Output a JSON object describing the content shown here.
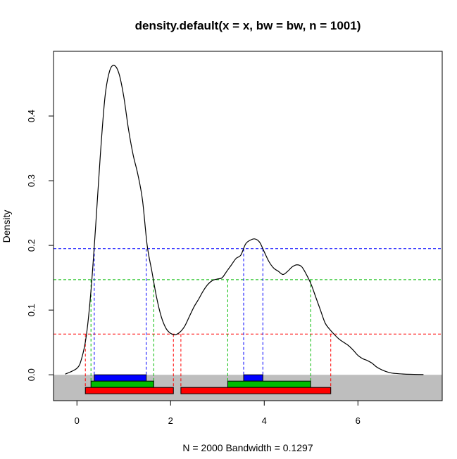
{
  "chart_data": {
    "type": "line",
    "title": "density.default(x = x, bw = bw, n = 1001)",
    "xlabel": "N = 2000   Bandwidth = 0.1297",
    "ylabel": "Density",
    "xlim": [
      -0.5,
      7.8
    ],
    "ylim": [
      -0.04,
      0.5
    ],
    "x_ticks": [
      0,
      2,
      4,
      6
    ],
    "x_tick_labels": [
      "0",
      "2",
      "4",
      "6"
    ],
    "y_ticks": [
      0.0,
      0.1,
      0.2,
      0.3,
      0.4
    ],
    "y_tick_labels": [
      "0.0",
      "0.1",
      "0.2",
      "0.3",
      "0.4"
    ],
    "grid": false,
    "density_curve": {
      "x": [
        -0.25,
        0.0,
        0.1,
        0.2,
        0.3,
        0.4,
        0.5,
        0.6,
        0.7,
        0.8,
        0.9,
        1.0,
        1.1,
        1.2,
        1.3,
        1.4,
        1.5,
        1.6,
        1.7,
        1.8,
        1.9,
        2.0,
        2.1,
        2.2,
        2.3,
        2.4,
        2.5,
        2.6,
        2.7,
        2.8,
        2.9,
        3.0,
        3.1,
        3.2,
        3.3,
        3.4,
        3.5,
        3.6,
        3.7,
        3.8,
        3.9,
        4.0,
        4.1,
        4.2,
        4.3,
        4.4,
        4.5,
        4.6,
        4.7,
        4.8,
        4.9,
        5.0,
        5.1,
        5.2,
        5.3,
        5.4,
        5.5,
        5.6,
        5.7,
        5.8,
        5.9,
        6.0,
        6.1,
        6.2,
        6.3,
        6.4,
        6.5,
        6.6,
        6.7,
        6.8,
        6.9,
        7.0,
        7.2,
        7.4
      ],
      "y": [
        0.001,
        0.01,
        0.025,
        0.06,
        0.13,
        0.23,
        0.34,
        0.43,
        0.47,
        0.478,
        0.465,
        0.43,
        0.38,
        0.34,
        0.31,
        0.27,
        0.2,
        0.16,
        0.12,
        0.09,
        0.072,
        0.064,
        0.062,
        0.066,
        0.075,
        0.09,
        0.105,
        0.117,
        0.13,
        0.14,
        0.146,
        0.148,
        0.15,
        0.16,
        0.17,
        0.18,
        0.185,
        0.202,
        0.208,
        0.21,
        0.205,
        0.19,
        0.175,
        0.165,
        0.16,
        0.155,
        0.16,
        0.167,
        0.17,
        0.167,
        0.155,
        0.14,
        0.12,
        0.1,
        0.08,
        0.07,
        0.062,
        0.055,
        0.05,
        0.045,
        0.038,
        0.03,
        0.025,
        0.022,
        0.018,
        0.012,
        0.008,
        0.005,
        0.003,
        0.002,
        0.0015,
        0.001,
        0.0006,
        0.0003
      ]
    },
    "hdr_levels": [
      {
        "color": "#0000ff",
        "density": 0.195,
        "intervals": [
          [
            0.37,
            1.48
          ],
          [
            3.56,
            3.97
          ]
        ]
      },
      {
        "color": "#00bb00",
        "density": 0.147,
        "intervals": [
          [
            0.3,
            1.64
          ],
          [
            3.22,
            4.99
          ]
        ]
      },
      {
        "color": "#ff0000",
        "density": 0.063,
        "intervals": [
          [
            0.18,
            2.06
          ],
          [
            2.22,
            5.42
          ]
        ]
      }
    ]
  }
}
